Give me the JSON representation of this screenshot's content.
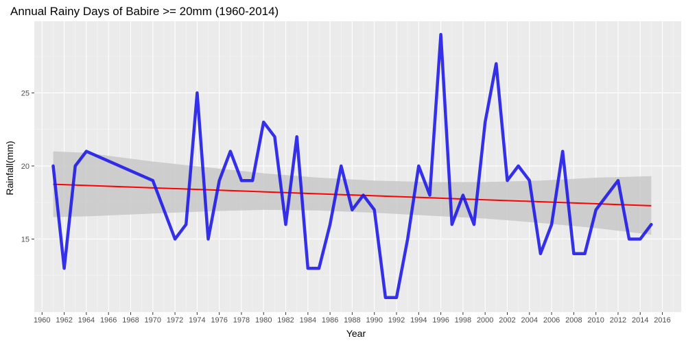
{
  "chart_data": {
    "type": "line",
    "title": "Annual Rainy Days of Babire >= 20mm (1960-2014)",
    "xlabel": "Year",
    "ylabel": "Rainfall(mm)",
    "xlim": [
      1959.3,
      2017.7
    ],
    "ylim": [
      10.0,
      29.9
    ],
    "x_ticks": [
      1960,
      1962,
      1964,
      1966,
      1968,
      1970,
      1972,
      1974,
      1976,
      1978,
      1980,
      1982,
      1984,
      1986,
      1988,
      1990,
      1992,
      1994,
      1996,
      1998,
      2000,
      2002,
      2004,
      2006,
      2008,
      2010,
      2012,
      2014,
      2016
    ],
    "y_ticks": [
      15,
      20,
      25
    ],
    "grid": true,
    "legend": "none",
    "series": [
      {
        "color": "#1a16e8",
        "x": [
          1961,
          1962,
          1963,
          1964,
          1970,
          1972,
          1973,
          1974,
          1975,
          1976,
          1977,
          1978,
          1979,
          1980,
          1981,
          1982,
          1983,
          1984,
          1985,
          1986,
          1987,
          1988,
          1989,
          1990,
          1991,
          1992,
          1993,
          1994,
          1995,
          1996,
          1997,
          1998,
          1999,
          2000,
          2001,
          2002,
          2003,
          2004,
          2005,
          2006,
          2007,
          2008,
          2009,
          2010,
          2011,
          2012,
          2013,
          2014,
          2015
        ],
        "y": [
          20,
          13,
          20,
          21,
          19,
          15,
          16,
          25,
          15,
          19,
          21,
          19,
          19,
          23,
          22,
          16,
          22,
          13,
          13,
          16,
          20,
          17,
          18,
          17,
          11,
          11,
          15,
          20,
          18,
          29,
          16,
          18,
          16,
          23,
          27,
          19,
          20,
          19,
          14,
          16,
          21,
          14,
          14,
          17,
          18,
          19,
          15,
          15,
          16
        ]
      }
    ],
    "trend": {
      "color": "#ff0000",
      "x": [
        1961,
        2015
      ],
      "y": [
        18.75,
        17.28
      ]
    },
    "confidence_band": {
      "color": "#c8c8c8",
      "x": [
        1961,
        1964,
        1970,
        1975,
        1980,
        1985,
        1990,
        1995,
        2000,
        2005,
        2010,
        2015
      ],
      "upper": [
        21.0,
        20.9,
        20.3,
        19.9,
        19.5,
        19.2,
        19.0,
        18.9,
        18.9,
        19.0,
        19.2,
        19.3
      ],
      "lower": [
        16.5,
        16.55,
        16.75,
        16.9,
        17.0,
        16.95,
        16.8,
        16.6,
        16.4,
        16.1,
        15.75,
        15.3
      ]
    },
    "colors": {
      "panel_background": "#ebebeb",
      "grid_major": "#ffffff",
      "grid_minor": "#f5f5f5"
    }
  }
}
